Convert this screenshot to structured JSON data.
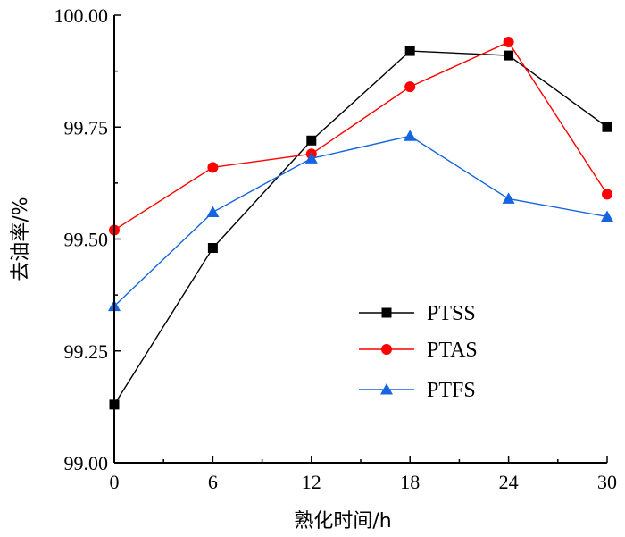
{
  "chart_data": {
    "type": "line",
    "x": [
      0,
      6,
      12,
      18,
      24,
      30
    ],
    "xlabel": "熟化时间/h",
    "ylabel": "去油率/%",
    "xlim": [
      0,
      30
    ],
    "ylim": [
      99.0,
      100.0
    ],
    "x_ticks": [
      "0",
      "6",
      "12",
      "18",
      "24",
      "30"
    ],
    "y_ticks": [
      "99.00",
      "99.25",
      "99.50",
      "99.75",
      "100.00"
    ],
    "grid": false,
    "legend_position": "bottom-right",
    "series": [
      {
        "name": "PTSS",
        "color": "#000000",
        "marker": "square",
        "values": [
          99.13,
          99.48,
          99.72,
          99.92,
          99.91,
          99.75
        ]
      },
      {
        "name": "PTAS",
        "color": "#ff0000",
        "marker": "circle",
        "values": [
          99.52,
          99.66,
          99.69,
          99.84,
          99.94,
          99.6
        ]
      },
      {
        "name": "PTFS",
        "color": "#1565e0",
        "marker": "triangle",
        "values": [
          99.35,
          99.56,
          99.68,
          99.73,
          99.59,
          99.55
        ]
      }
    ]
  }
}
